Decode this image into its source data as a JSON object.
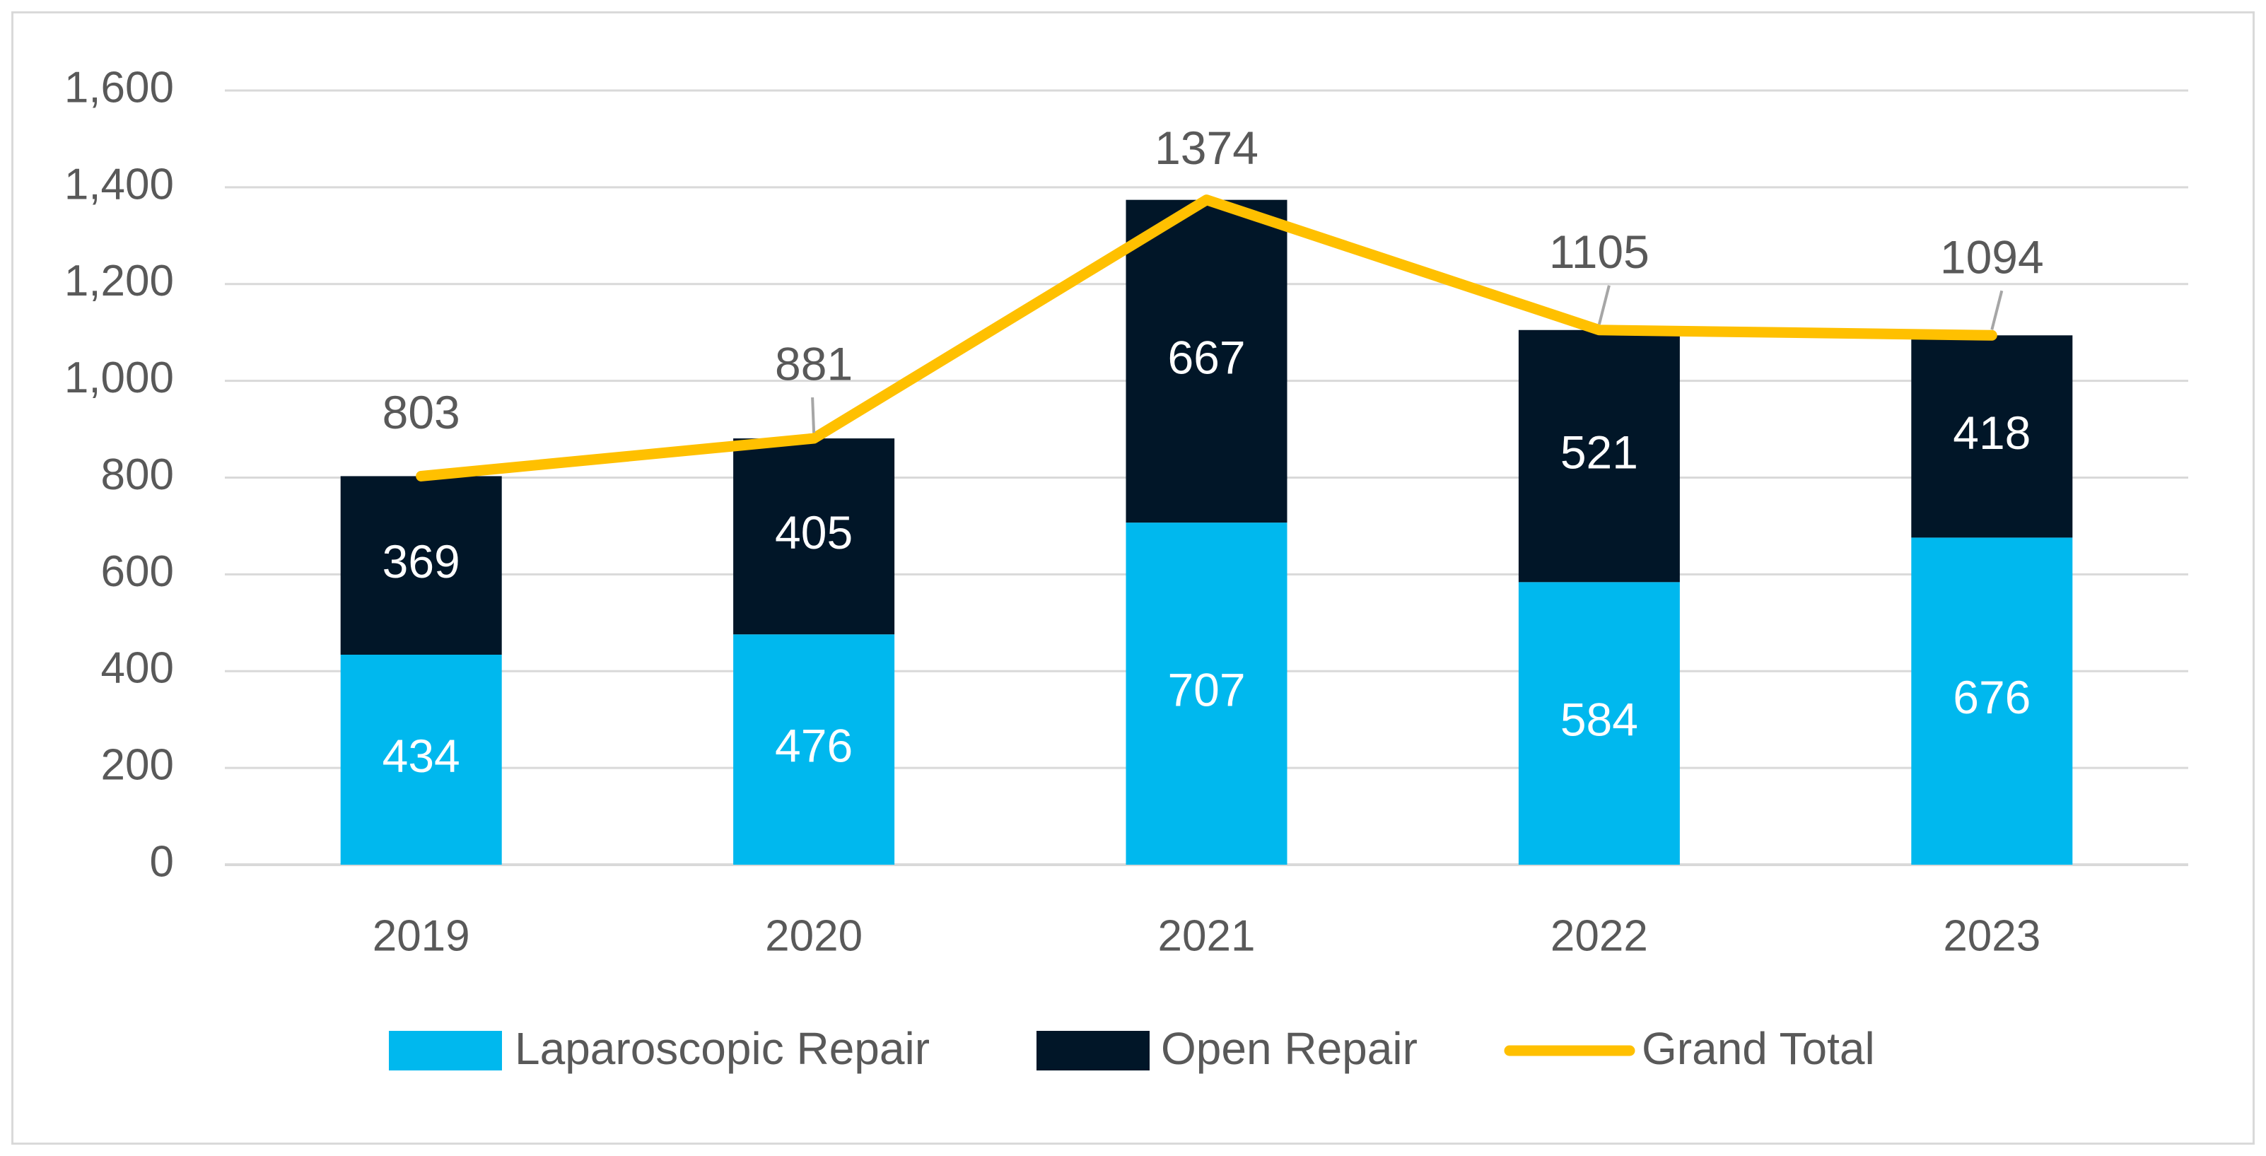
{
  "colors": {
    "laparoscopic": "#00B8EE",
    "open": "#011628",
    "total": "#FFC000",
    "grid": "#d9d9d9",
    "text": "#595959"
  },
  "chart_data": {
    "type": "bar",
    "stacked": true,
    "title": "",
    "xlabel": "",
    "ylabel": "",
    "ylim": [
      0,
      1600
    ],
    "yticks": [
      0,
      200,
      400,
      600,
      800,
      1000,
      1200,
      1400,
      1600
    ],
    "ytick_labels": [
      "0",
      "200",
      "400",
      "600",
      "800",
      "1,000",
      "1,200",
      "1,400",
      "1,600"
    ],
    "grid": true,
    "legend_position": "bottom",
    "categories": [
      "2019",
      "2020",
      "2021",
      "2022",
      "2023"
    ],
    "series": [
      {
        "name": "Laparoscopic Repair",
        "type": "bar",
        "values": [
          434,
          476,
          707,
          584,
          676
        ],
        "labels": [
          "434",
          "476",
          "707",
          "584",
          "676"
        ]
      },
      {
        "name": "Open Repair",
        "type": "bar",
        "values": [
          369,
          405,
          667,
          521,
          418
        ],
        "labels": [
          "369",
          "405",
          "667",
          "521",
          "418"
        ]
      },
      {
        "name": "Grand Total",
        "type": "line",
        "values": [
          803,
          881,
          1374,
          1105,
          1094
        ],
        "labels": [
          "803",
          "881",
          "1374",
          "1105",
          "1094"
        ]
      }
    ]
  }
}
